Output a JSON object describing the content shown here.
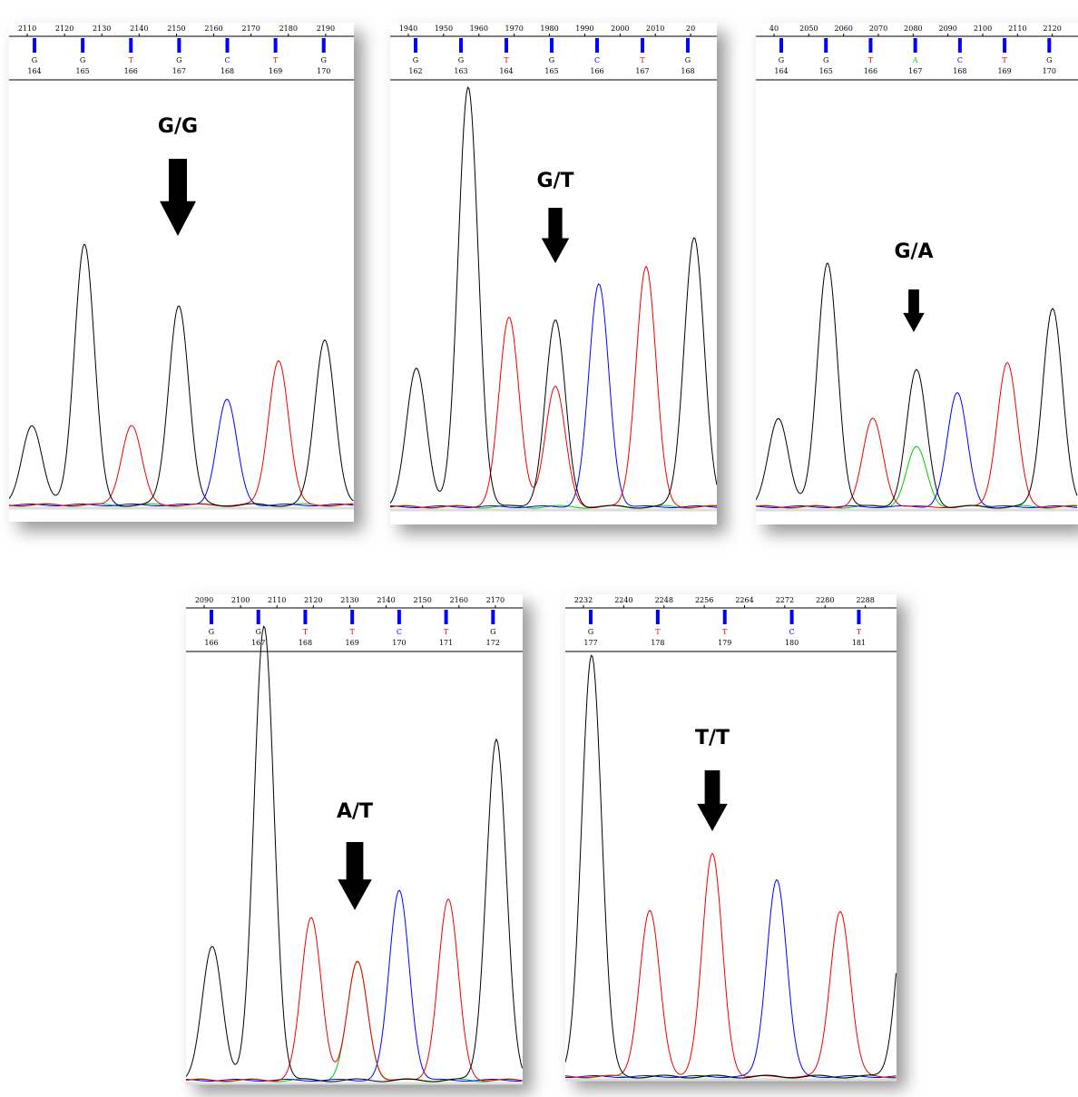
{
  "panels": [
    {
      "label": "G/G",
      "scale": [
        "2110",
        "2120",
        "2130",
        "2140",
        "2150",
        "2160",
        "2170",
        "2180",
        "2190"
      ],
      "bases": [
        "G",
        "G",
        "T",
        "G",
        "C",
        "T",
        "G"
      ],
      "positions": [
        "164",
        "165",
        "166",
        "167",
        "168",
        "169",
        "170"
      ]
    },
    {
      "label": "G/T",
      "scale": [
        "1940",
        "1950",
        "1960",
        "1970",
        "1980",
        "1990",
        "2000",
        "2010",
        "20"
      ],
      "bases": [
        "G",
        "G",
        "T",
        "G",
        "C",
        "T",
        "G"
      ],
      "positions": [
        "162",
        "163",
        "164",
        "165",
        "166",
        "167",
        "168"
      ]
    },
    {
      "label": "G/A",
      "scale": [
        "40",
        "2050",
        "2060",
        "2070",
        "2080",
        "2090",
        "2100",
        "2110",
        "2120"
      ],
      "bases": [
        "G",
        "G",
        "T",
        "A",
        "C",
        "T",
        "G"
      ],
      "positions": [
        "164",
        "165",
        "166",
        "167",
        "168",
        "169",
        "170"
      ]
    },
    {
      "label": "A/T",
      "scale": [
        "2090",
        "2100",
        "2110",
        "2120",
        "2130",
        "2140",
        "2150",
        "2160",
        "2170"
      ],
      "bases": [
        "G",
        "G",
        "T",
        "T",
        "C",
        "T",
        "G"
      ],
      "positions": [
        "166",
        "167",
        "168",
        "169",
        "170",
        "171",
        "172"
      ]
    },
    {
      "label": "T/T",
      "scale": [
        "2232",
        "2240",
        "2248",
        "2256",
        "2264",
        "2272",
        "2280",
        "2288"
      ],
      "bases": [
        "G",
        "T",
        "T",
        "C",
        "T"
      ],
      "positions": [
        "177",
        "178",
        "179",
        "180",
        "181"
      ]
    }
  ]
}
